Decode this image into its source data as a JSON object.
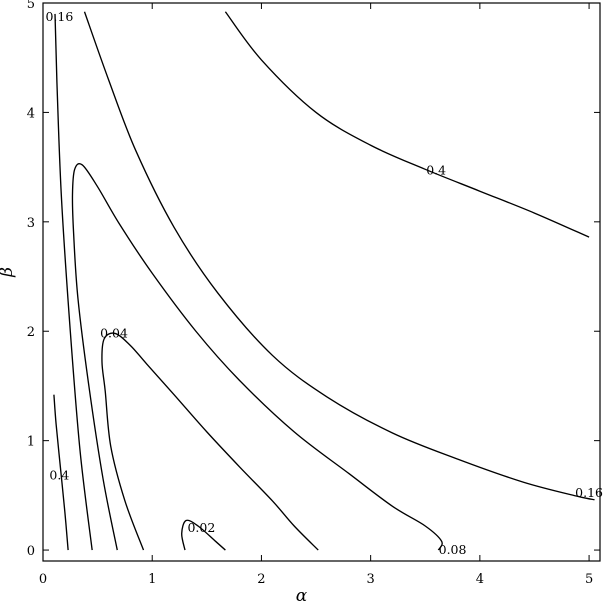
{
  "chart_data": {
    "type": "line",
    "subtype": "contour",
    "title": "",
    "xlabel": "α",
    "ylabel": "β",
    "xlim": [
      0,
      5.1
    ],
    "ylim": [
      -0.1,
      5.0
    ],
    "xticks": [
      "0",
      "1",
      "2",
      "3",
      "4",
      "5"
    ],
    "yticks": [
      "0",
      "1",
      "2",
      "3",
      "4",
      "5"
    ],
    "grid": false,
    "legend": "none",
    "series": [
      {
        "level": 0.02,
        "x": [
          1.3,
          1.27,
          1.31,
          1.42,
          1.58,
          1.67
        ],
        "y": [
          0.0,
          0.15,
          0.27,
          0.22,
          0.08,
          0.0
        ]
      },
      {
        "level": 0.04,
        "x": [
          0.92,
          0.75,
          0.62,
          0.57,
          0.54,
          0.56,
          0.66,
          0.8,
          0.95,
          1.2,
          1.5,
          1.8,
          2.1,
          2.3,
          2.52
        ],
        "y": [
          0.0,
          0.45,
          0.95,
          1.45,
          1.72,
          1.93,
          1.98,
          1.87,
          1.7,
          1.42,
          1.08,
          0.76,
          0.45,
          0.22,
          0.0
        ]
      },
      {
        "level": 0.08,
        "x": [
          0.68,
          0.55,
          0.42,
          0.32,
          0.28,
          0.27,
          0.29,
          0.36,
          0.5,
          0.7,
          1.0,
          1.4,
          1.8,
          2.3,
          2.8,
          3.2,
          3.5,
          3.65,
          3.62
        ],
        "y": [
          0.0,
          0.65,
          1.5,
          2.3,
          2.9,
          3.25,
          3.48,
          3.52,
          3.32,
          2.98,
          2.53,
          2.0,
          1.55,
          1.08,
          0.7,
          0.4,
          0.22,
          0.08,
          0.0
        ]
      },
      {
        "level": 0.16,
        "x": [
          0.45,
          0.34,
          0.25,
          0.17,
          0.13,
          0.11
        ],
        "y": [
          0.0,
          0.9,
          2.0,
          3.2,
          4.2,
          4.9
        ]
      },
      {
        "level": 0.16,
        "x": [
          0.38,
          0.6,
          0.85,
          1.2,
          1.6,
          2.1,
          2.6,
          3.2,
          3.8,
          4.4,
          4.9,
          5.05
        ],
        "y": [
          4.92,
          4.3,
          3.65,
          2.95,
          2.35,
          1.78,
          1.4,
          1.07,
          0.83,
          0.62,
          0.49,
          0.46
        ]
      },
      {
        "level": 0.4,
        "x": [
          0.23,
          0.2,
          0.16,
          0.12,
          0.1
        ],
        "y": [
          0.0,
          0.35,
          0.75,
          1.15,
          1.42
        ]
      },
      {
        "level": 0.4,
        "x": [
          1.67,
          2.0,
          2.5,
          3.0,
          3.5,
          4.0,
          4.5,
          5.0
        ],
        "y": [
          4.92,
          4.48,
          4.0,
          3.7,
          3.48,
          3.28,
          3.08,
          2.86
        ]
      }
    ],
    "contour_labels": [
      {
        "text": "0.16",
        "x": 0.15,
        "y": 4.87
      },
      {
        "text": "0.4",
        "x": 3.6,
        "y": 3.47
      },
      {
        "text": "0.04",
        "x": 0.65,
        "y": 1.98
      },
      {
        "text": "0.4",
        "x": 0.15,
        "y": 0.68
      },
      {
        "text": "0.16",
        "x": 5.0,
        "y": 0.52
      },
      {
        "text": "0.02",
        "x": 1.45,
        "y": 0.2
      },
      {
        "text": "0.08",
        "x": 3.75,
        "y": 0.0
      }
    ]
  }
}
